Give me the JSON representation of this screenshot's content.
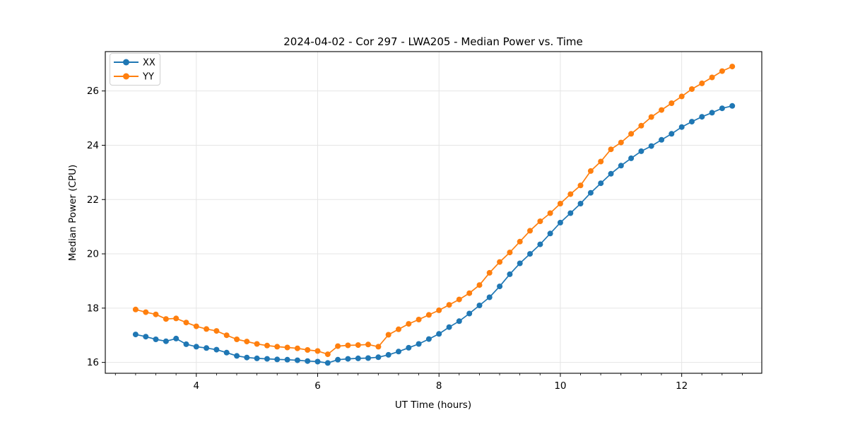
{
  "chart_data": {
    "type": "line",
    "title": "2024-04-02 - Cor 297 - LWA205 - Median Power vs. Time",
    "xlabel": "UT Time (hours)",
    "ylabel": "Median Power (CPU)",
    "xlim": [
      2.5,
      13.32
    ],
    "ylim": [
      15.6,
      27.45
    ],
    "x_major_ticks": [
      4,
      6,
      8,
      10,
      12
    ],
    "x_minor_tick_step": 0.3333,
    "y_major_ticks": [
      16,
      18,
      20,
      22,
      24,
      26
    ],
    "grid": "major-both-axes",
    "legend": {
      "position": "upper-left",
      "entries": [
        "XX",
        "YY"
      ]
    },
    "x": [
      3.0,
      3.167,
      3.333,
      3.5,
      3.667,
      3.833,
      4.0,
      4.167,
      4.333,
      4.5,
      4.667,
      4.833,
      5.0,
      5.167,
      5.333,
      5.5,
      5.667,
      5.833,
      6.0,
      6.167,
      6.333,
      6.5,
      6.667,
      6.833,
      7.0,
      7.167,
      7.333,
      7.5,
      7.667,
      7.833,
      8.0,
      8.167,
      8.333,
      8.5,
      8.667,
      8.833,
      9.0,
      9.167,
      9.333,
      9.5,
      9.667,
      9.833,
      10.0,
      10.167,
      10.333,
      10.5,
      10.667,
      10.833,
      11.0,
      11.167,
      11.333,
      11.5,
      11.667,
      11.833,
      12.0,
      12.167,
      12.333,
      12.5,
      12.667,
      12.833
    ],
    "series": [
      {
        "name": "XX",
        "color": "#1f77b4",
        "marker": "circle",
        "values": [
          17.03,
          16.95,
          16.85,
          16.78,
          16.88,
          16.67,
          16.58,
          16.53,
          16.47,
          16.36,
          16.24,
          16.18,
          16.15,
          16.13,
          16.11,
          16.1,
          16.08,
          16.05,
          16.03,
          15.98,
          16.1,
          16.13,
          16.15,
          16.16,
          16.19,
          16.28,
          16.4,
          16.54,
          16.68,
          16.86,
          17.05,
          17.3,
          17.52,
          17.8,
          18.1,
          18.4,
          18.8,
          19.25,
          19.65,
          20.0,
          20.35,
          20.75,
          21.15,
          21.5,
          21.85,
          22.25,
          22.6,
          22.95,
          23.25,
          23.52,
          23.78,
          23.97,
          24.2,
          24.42,
          24.67,
          24.87,
          25.05,
          25.2,
          25.36,
          25.45
        ]
      },
      {
        "name": "YY",
        "color": "#ff7f0e",
        "marker": "circle",
        "values": [
          17.95,
          17.85,
          17.77,
          17.6,
          17.62,
          17.47,
          17.33,
          17.23,
          17.16,
          17.0,
          16.85,
          16.77,
          16.68,
          16.62,
          16.58,
          16.55,
          16.52,
          16.46,
          16.42,
          16.3,
          16.6,
          16.63,
          16.64,
          16.66,
          16.58,
          17.02,
          17.22,
          17.42,
          17.58,
          17.75,
          17.92,
          18.12,
          18.32,
          18.55,
          18.85,
          19.3,
          19.7,
          20.05,
          20.45,
          20.85,
          21.2,
          21.5,
          21.85,
          22.2,
          22.52,
          23.05,
          23.4,
          23.85,
          24.1,
          24.42,
          24.72,
          25.04,
          25.3,
          25.55,
          25.8,
          26.07,
          26.28,
          26.5,
          26.73,
          26.9
        ]
      }
    ]
  },
  "colors": {
    "grid": "#e5e5e5",
    "spine": "#000000",
    "background": "#ffffff"
  }
}
